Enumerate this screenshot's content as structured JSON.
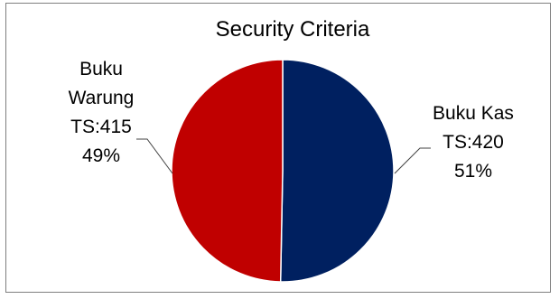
{
  "chart_data": {
    "type": "pie",
    "title": "Security Criteria",
    "categories": [
      "Buku Kas",
      "Buku Warung"
    ],
    "values": [
      420,
      415
    ],
    "percent_labels": [
      "51%",
      "49%"
    ],
    "value_labels": [
      "TS:420",
      "TS:415"
    ],
    "colors": [
      "#002060",
      "#C00000"
    ],
    "legend": "none",
    "data_label_position": "outside-with-leader-lines"
  }
}
